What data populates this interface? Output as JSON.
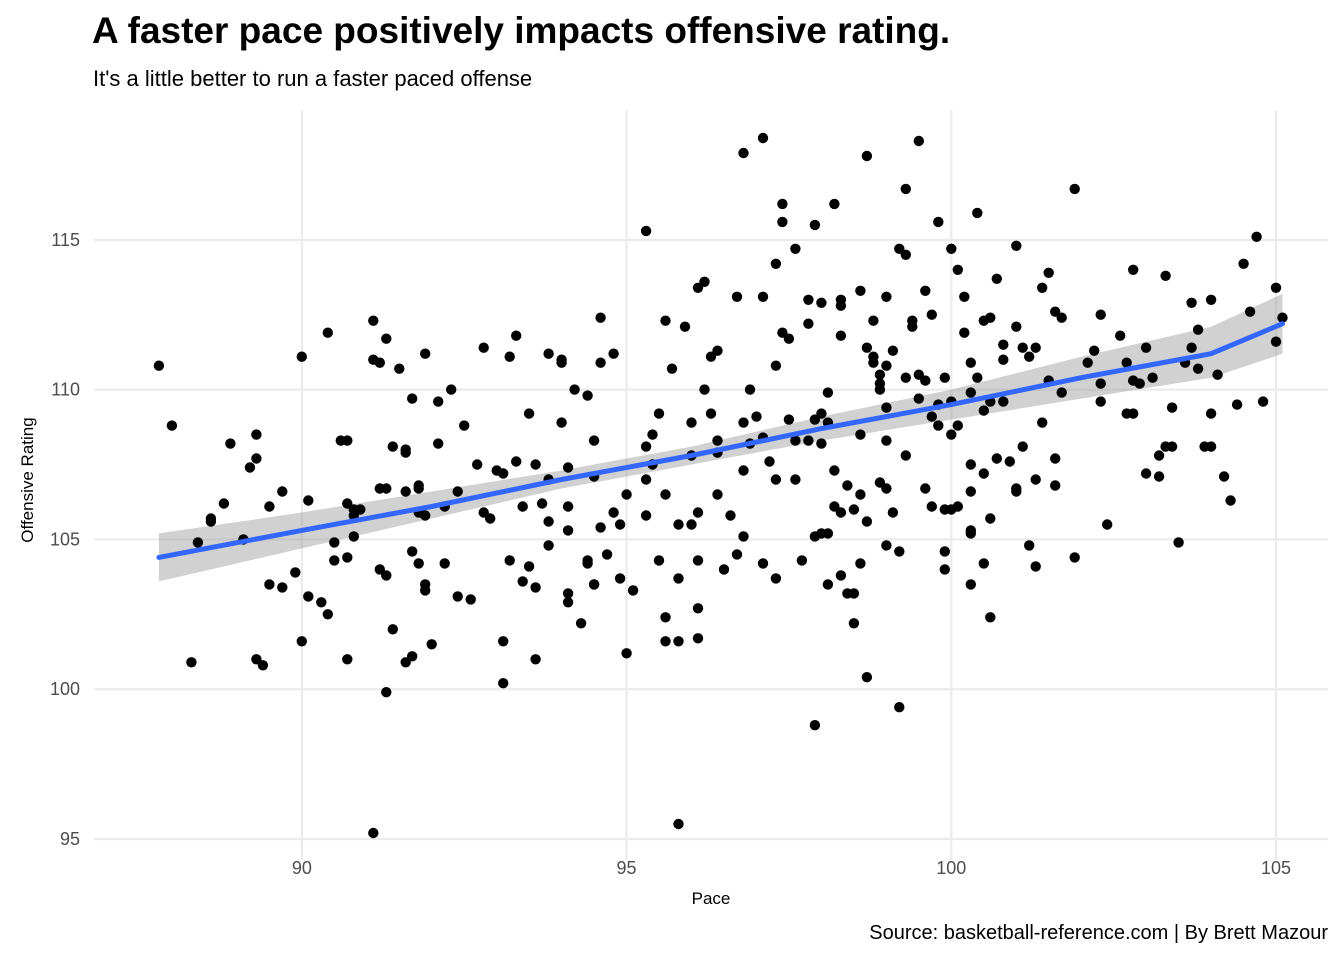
{
  "chart_data": {
    "type": "scatter",
    "title": "A faster pace positively impacts offensive rating.",
    "subtitle": "It's a little better to run a faster paced offense",
    "caption": "Source: basketball-reference.com | By Brett Mazour",
    "xlabel": "Pace",
    "ylabel": "Offensive Rating",
    "xlim": [
      86.8,
      105.8
    ],
    "ylim": [
      94.3,
      119.0
    ],
    "xticks": [
      90,
      95,
      100,
      105
    ],
    "yticks": [
      95,
      100,
      105,
      110,
      115
    ],
    "grid": true,
    "point_color": "#000000",
    "trend_color": "#3366FF",
    "band_color": "#999999",
    "trend": {
      "x": [
        87.8,
        90.0,
        92.0,
        94.0,
        96.0,
        98.0,
        100.0,
        102.0,
        104.0,
        105.1
      ],
      "y": [
        104.4,
        105.3,
        106.1,
        107.0,
        107.8,
        108.7,
        109.5,
        110.4,
        111.2,
        112.2
      ],
      "lower": [
        103.6,
        104.7,
        105.7,
        106.7,
        107.5,
        108.3,
        109.0,
        109.7,
        110.4,
        111.2
      ],
      "upper": [
        105.2,
        105.9,
        106.6,
        107.3,
        108.1,
        109.1,
        110.0,
        111.1,
        112.1,
        113.2
      ]
    },
    "points": [
      [
        87.8,
        110.8
      ],
      [
        88.0,
        108.8
      ],
      [
        88.4,
        104.9
      ],
      [
        88.6,
        105.7
      ],
      [
        88.6,
        105.6
      ],
      [
        88.3,
        100.9
      ],
      [
        88.8,
        106.2
      ],
      [
        88.9,
        108.2
      ],
      [
        89.1,
        105.0
      ],
      [
        89.2,
        107.4
      ],
      [
        89.3,
        107.7
      ],
      [
        89.3,
        108.5
      ],
      [
        89.5,
        106.1
      ],
      [
        89.5,
        103.5
      ],
      [
        89.3,
        101.0
      ],
      [
        89.4,
        100.8
      ],
      [
        89.7,
        106.6
      ],
      [
        89.7,
        103.4
      ],
      [
        89.9,
        103.9
      ],
      [
        90.0,
        111.1
      ],
      [
        90.0,
        101.6
      ],
      [
        90.1,
        106.3
      ],
      [
        90.1,
        103.1
      ],
      [
        90.3,
        102.9
      ],
      [
        90.4,
        111.9
      ],
      [
        90.4,
        102.5
      ],
      [
        90.5,
        104.9
      ],
      [
        90.5,
        104.3
      ],
      [
        90.6,
        108.3
      ],
      [
        90.7,
        108.3
      ],
      [
        90.7,
        106.2
      ],
      [
        90.8,
        106.0
      ],
      [
        90.8,
        105.1
      ],
      [
        90.7,
        104.4
      ],
      [
        90.7,
        101.0
      ],
      [
        90.9,
        106.0
      ],
      [
        90.8,
        105.8
      ],
      [
        91.1,
        112.3
      ],
      [
        91.1,
        111.0
      ],
      [
        91.2,
        106.7
      ],
      [
        91.2,
        104.0
      ],
      [
        91.3,
        103.8
      ],
      [
        91.3,
        106.7
      ],
      [
        91.3,
        111.7
      ],
      [
        91.4,
        108.1
      ],
      [
        91.4,
        102.0
      ],
      [
        91.5,
        110.7
      ],
      [
        91.6,
        108.0
      ],
      [
        91.6,
        107.9
      ],
      [
        91.7,
        109.7
      ],
      [
        91.6,
        106.6
      ],
      [
        91.7,
        104.6
      ],
      [
        91.8,
        104.2
      ],
      [
        91.8,
        105.9
      ],
      [
        91.8,
        106.7
      ],
      [
        91.8,
        106.8
      ],
      [
        91.9,
        105.8
      ],
      [
        91.9,
        103.5
      ],
      [
        91.9,
        103.3
      ],
      [
        91.9,
        111.2
      ],
      [
        91.6,
        100.9
      ],
      [
        91.2,
        110.9
      ],
      [
        91.1,
        95.2
      ],
      [
        91.3,
        99.9
      ],
      [
        91.7,
        101.1
      ],
      [
        92.0,
        101.5
      ],
      [
        92.1,
        109.6
      ],
      [
        92.1,
        108.2
      ],
      [
        92.2,
        106.1
      ],
      [
        92.2,
        104.2
      ],
      [
        92.3,
        110.0
      ],
      [
        92.4,
        106.6
      ],
      [
        92.4,
        103.1
      ],
      [
        92.5,
        108.8
      ],
      [
        92.6,
        103.0
      ],
      [
        92.7,
        107.5
      ],
      [
        92.8,
        111.4
      ],
      [
        92.8,
        105.9
      ],
      [
        92.9,
        105.7
      ],
      [
        93.0,
        107.3
      ],
      [
        93.1,
        107.2
      ],
      [
        93.1,
        101.6
      ],
      [
        93.1,
        100.2
      ],
      [
        93.3,
        111.8
      ],
      [
        93.2,
        111.1
      ],
      [
        93.2,
        104.3
      ],
      [
        93.3,
        107.6
      ],
      [
        93.4,
        103.6
      ],
      [
        93.4,
        106.1
      ],
      [
        93.5,
        109.2
      ],
      [
        93.5,
        104.1
      ],
      [
        93.6,
        101.0
      ],
      [
        93.6,
        103.4
      ],
      [
        93.6,
        107.5
      ],
      [
        93.7,
        106.2
      ],
      [
        93.8,
        111.2
      ],
      [
        93.8,
        107.0
      ],
      [
        93.8,
        105.6
      ],
      [
        93.8,
        104.8
      ],
      [
        94.0,
        111.0
      ],
      [
        94.0,
        108.9
      ],
      [
        94.0,
        110.9
      ],
      [
        94.1,
        107.4
      ],
      [
        94.1,
        105.3
      ],
      [
        94.1,
        103.2
      ],
      [
        94.1,
        102.9
      ],
      [
        94.1,
        106.1
      ],
      [
        94.2,
        110.0
      ],
      [
        94.3,
        102.2
      ],
      [
        94.4,
        109.8
      ],
      [
        94.4,
        104.2
      ],
      [
        94.4,
        104.3
      ],
      [
        94.5,
        108.3
      ],
      [
        94.5,
        103.5
      ],
      [
        94.5,
        103.5
      ],
      [
        94.5,
        107.1
      ],
      [
        94.6,
        112.4
      ],
      [
        94.6,
        110.9
      ],
      [
        94.6,
        105.4
      ],
      [
        94.7,
        104.5
      ],
      [
        94.8,
        111.2
      ],
      [
        94.8,
        105.9
      ],
      [
        94.9,
        103.7
      ],
      [
        94.9,
        105.5
      ],
      [
        95.0,
        101.2
      ],
      [
        95.0,
        106.5
      ],
      [
        95.1,
        103.3
      ],
      [
        95.3,
        107.0
      ],
      [
        95.3,
        108.1
      ],
      [
        95.3,
        105.8
      ],
      [
        95.4,
        107.5
      ],
      [
        95.4,
        108.5
      ],
      [
        95.5,
        104.3
      ],
      [
        95.5,
        109.2
      ],
      [
        95.6,
        106.5
      ],
      [
        95.6,
        102.4
      ],
      [
        95.7,
        110.7
      ],
      [
        95.8,
        101.6
      ],
      [
        95.8,
        105.5
      ],
      [
        95.8,
        103.7
      ],
      [
        96.0,
        108.9
      ],
      [
        96.0,
        105.5
      ],
      [
        96.0,
        107.8
      ],
      [
        96.1,
        102.7
      ],
      [
        96.1,
        105.9
      ],
      [
        96.1,
        104.3
      ],
      [
        96.2,
        110.0
      ],
      [
        96.3,
        109.2
      ],
      [
        96.3,
        111.1
      ],
      [
        96.4,
        111.3
      ],
      [
        96.4,
        108.3
      ],
      [
        96.4,
        107.9
      ],
      [
        96.4,
        106.5
      ],
      [
        96.5,
        104.0
      ],
      [
        96.6,
        105.8
      ],
      [
        96.7,
        104.5
      ],
      [
        96.8,
        108.9
      ],
      [
        96.8,
        107.3
      ],
      [
        96.8,
        105.1
      ],
      [
        96.9,
        110.0
      ],
      [
        96.9,
        108.2
      ],
      [
        97.0,
        109.1
      ],
      [
        97.1,
        108.4
      ],
      [
        97.1,
        104.2
      ],
      [
        97.2,
        107.6
      ],
      [
        97.3,
        110.8
      ],
      [
        97.3,
        103.7
      ],
      [
        97.4,
        111.9
      ],
      [
        97.5,
        109.0
      ],
      [
        97.5,
        111.7
      ],
      [
        97.6,
        107.0
      ],
      [
        97.7,
        104.3
      ],
      [
        97.8,
        112.2
      ],
      [
        97.9,
        105.1
      ],
      [
        98.0,
        109.2
      ],
      [
        98.0,
        108.2
      ],
      [
        98.1,
        103.5
      ],
      [
        98.2,
        106.1
      ],
      [
        98.4,
        103.2
      ],
      [
        98.7,
        100.4
      ],
      [
        98.9,
        110.5
      ],
      [
        99.0,
        108.3
      ],
      [
        99.0,
        106.7
      ],
      [
        99.1,
        105.9
      ],
      [
        99.2,
        104.6
      ],
      [
        99.3,
        110.4
      ],
      [
        99.3,
        107.8
      ],
      [
        99.4,
        112.3
      ],
      [
        99.5,
        109.7
      ],
      [
        99.5,
        110.5
      ],
      [
        99.6,
        110.3
      ],
      [
        99.7,
        109.1
      ],
      [
        99.7,
        106.1
      ],
      [
        99.8,
        108.8
      ],
      [
        99.9,
        104.6
      ],
      [
        99.9,
        104.0
      ],
      [
        100.0,
        108.5
      ],
      [
        100.0,
        109.6
      ],
      [
        100.1,
        108.8
      ],
      [
        100.1,
        106.1
      ],
      [
        100.2,
        111.9
      ],
      [
        100.3,
        109.9
      ],
      [
        100.3,
        107.5
      ],
      [
        100.3,
        105.3
      ],
      [
        100.4,
        110.4
      ],
      [
        100.5,
        109.3
      ],
      [
        100.5,
        107.2
      ],
      [
        100.6,
        105.7
      ],
      [
        100.6,
        102.4
      ],
      [
        100.7,
        107.7
      ],
      [
        100.8,
        111.5
      ],
      [
        100.9,
        107.6
      ],
      [
        101.0,
        106.7
      ],
      [
        101.1,
        108.1
      ],
      [
        101.2,
        104.8
      ],
      [
        101.3,
        111.4
      ],
      [
        101.3,
        107.0
      ],
      [
        101.4,
        113.4
      ],
      [
        101.5,
        110.3
      ],
      [
        101.6,
        106.8
      ],
      [
        101.7,
        109.9
      ],
      [
        101.9,
        104.4
      ],
      [
        102.1,
        110.9
      ],
      [
        102.2,
        111.3
      ],
      [
        102.3,
        109.6
      ],
      [
        102.3,
        112.5
      ],
      [
        102.4,
        105.5
      ],
      [
        102.6,
        111.8
      ],
      [
        102.7,
        109.2
      ],
      [
        102.8,
        114.0
      ],
      [
        102.9,
        110.2
      ],
      [
        103.0,
        111.4
      ],
      [
        103.2,
        107.1
      ],
      [
        103.3,
        108.1
      ],
      [
        103.4,
        109.4
      ],
      [
        103.5,
        104.9
      ],
      [
        103.6,
        110.9
      ],
      [
        103.7,
        111.4
      ],
      [
        103.8,
        112.0
      ],
      [
        104.0,
        113.0
      ],
      [
        104.0,
        108.1
      ],
      [
        104.1,
        110.5
      ],
      [
        104.2,
        107.1
      ],
      [
        104.3,
        106.3
      ],
      [
        104.4,
        109.5
      ],
      [
        104.5,
        114.2
      ],
      [
        104.6,
        112.6
      ],
      [
        104.7,
        115.1
      ],
      [
        104.8,
        109.6
      ],
      [
        105.0,
        113.4
      ],
      [
        105.0,
        111.6
      ],
      [
        105.1,
        112.4
      ],
      [
        95.3,
        115.3
      ],
      [
        96.8,
        117.9
      ],
      [
        97.1,
        118.4
      ],
      [
        97.4,
        115.6
      ],
      [
        97.4,
        116.2
      ],
      [
        97.9,
        115.5
      ],
      [
        98.2,
        116.2
      ],
      [
        98.7,
        117.8
      ],
      [
        99.3,
        116.7
      ],
      [
        99.5,
        118.3
      ],
      [
        99.8,
        115.6
      ],
      [
        100.4,
        115.9
      ],
      [
        101.9,
        116.7
      ],
      [
        98.8,
        112.3
      ],
      [
        98.6,
        113.3
      ],
      [
        97.6,
        114.7
      ],
      [
        97.3,
        114.2
      ],
      [
        96.2,
        113.6
      ],
      [
        95.6,
        112.3
      ],
      [
        95.9,
        112.1
      ],
      [
        96.1,
        113.4
      ],
      [
        96.7,
        113.1
      ],
      [
        97.1,
        113.1
      ],
      [
        97.8,
        113.0
      ],
      [
        98.3,
        113.0
      ],
      [
        98.0,
        112.9
      ],
      [
        98.3,
        112.8
      ],
      [
        99.0,
        113.1
      ],
      [
        99.2,
        114.7
      ],
      [
        99.3,
        114.5
      ],
      [
        99.6,
        113.3
      ],
      [
        99.7,
        112.5
      ],
      [
        100.0,
        114.7
      ],
      [
        100.1,
        114.0
      ],
      [
        100.2,
        113.1
      ],
      [
        100.5,
        112.3
      ],
      [
        100.6,
        112.4
      ],
      [
        100.7,
        113.7
      ],
      [
        101.0,
        112.1
      ],
      [
        101.5,
        113.9
      ],
      [
        101.6,
        112.6
      ],
      [
        101.7,
        112.4
      ],
      [
        102.8,
        110.3
      ],
      [
        102.8,
        109.2
      ],
      [
        103.1,
        110.4
      ],
      [
        103.3,
        113.8
      ],
      [
        103.7,
        112.9
      ],
      [
        103.8,
        110.7
      ],
      [
        103.9,
        108.1
      ],
      [
        104.0,
        109.2
      ],
      [
        102.3,
        110.2
      ],
      [
        102.7,
        110.9
      ],
      [
        103.0,
        107.2
      ],
      [
        103.2,
        107.8
      ],
      [
        103.4,
        108.1
      ],
      [
        101.3,
        104.1
      ],
      [
        101.0,
        106.6
      ],
      [
        100.8,
        109.6
      ],
      [
        100.3,
        106.6
      ],
      [
        100.3,
        105.2
      ],
      [
        100.3,
        103.5
      ],
      [
        100.5,
        104.2
      ],
      [
        100.6,
        109.6
      ],
      [
        100.8,
        111.0
      ],
      [
        101.1,
        111.4
      ],
      [
        101.4,
        108.9
      ],
      [
        101.6,
        107.7
      ],
      [
        100.0,
        106.0
      ],
      [
        99.8,
        109.5
      ],
      [
        99.9,
        110.4
      ],
      [
        99.2,
        99.4
      ],
      [
        97.9,
        98.8
      ],
      [
        95.8,
        95.5
      ],
      [
        95.6,
        101.6
      ],
      [
        96.1,
        101.7
      ],
      [
        97.3,
        107.0
      ],
      [
        98.6,
        104.2
      ],
      [
        98.5,
        103.2
      ],
      [
        98.5,
        102.2
      ],
      [
        98.3,
        103.8
      ],
      [
        98.0,
        105.2
      ],
      [
        98.1,
        105.2
      ],
      [
        98.4,
        106.8
      ],
      [
        98.3,
        105.9
      ],
      [
        98.6,
        106.5
      ],
      [
        98.5,
        106.0
      ],
      [
        98.7,
        105.6
      ],
      [
        98.9,
        106.9
      ],
      [
        99.0,
        104.8
      ],
      [
        99.0,
        109.4
      ],
      [
        98.8,
        110.9
      ],
      [
        98.9,
        110.2
      ],
      [
        98.9,
        110.0
      ],
      [
        98.6,
        108.5
      ],
      [
        98.2,
        107.3
      ],
      [
        98.1,
        109.9
      ],
      [
        97.6,
        108.3
      ],
      [
        97.8,
        108.3
      ],
      [
        97.9,
        109.0
      ],
      [
        98.1,
        108.9
      ],
      [
        98.3,
        111.8
      ],
      [
        98.7,
        111.4
      ],
      [
        98.8,
        111.1
      ],
      [
        99.0,
        110.8
      ],
      [
        99.1,
        111.3
      ],
      [
        99.4,
        112.1
      ],
      [
        99.6,
        106.7
      ],
      [
        99.9,
        106.0
      ],
      [
        101.0,
        114.8
      ],
      [
        100.3,
        110.9
      ],
      [
        101.2,
        111.1
      ]
    ]
  }
}
